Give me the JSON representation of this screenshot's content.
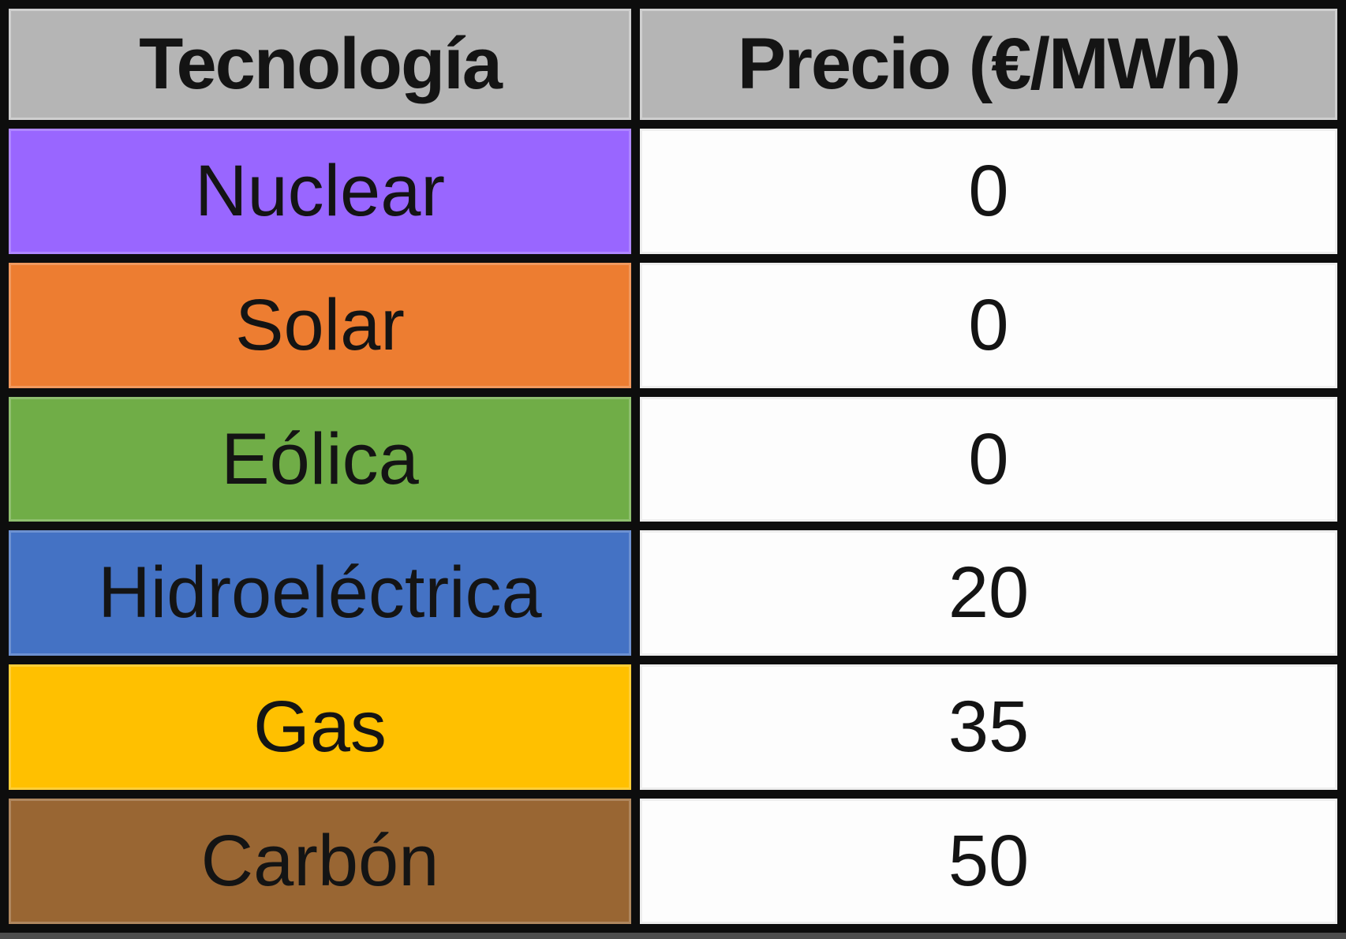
{
  "table": {
    "columns": [
      "Tecnología",
      "Precio (€/MWh)"
    ],
    "rows": [
      {
        "tech": "Nuclear",
        "price": "0",
        "color": "#9966FF"
      },
      {
        "tech": "Solar",
        "price": "0",
        "color": "#ED7D31"
      },
      {
        "tech": "Eólica",
        "price": "0",
        "color": "#70AD47"
      },
      {
        "tech": "Hidroeléctrica",
        "price": "20",
        "color": "#4472C4"
      },
      {
        "tech": "Gas",
        "price": "35",
        "color": "#FFC000"
      },
      {
        "tech": "Carbón",
        "price": "50",
        "color": "#996633"
      }
    ],
    "header_bg": "#B5B5B5",
    "cell_bg": "#FDFDFD",
    "border_color": "#0D0D0D",
    "bottom_strip_color": "#4D4D4D"
  },
  "chart_data": {
    "type": "table",
    "columns": [
      "Tecnología",
      "Precio (€/MWh)"
    ],
    "rows": [
      [
        "Nuclear",
        0
      ],
      [
        "Solar",
        0
      ],
      [
        "Eólica",
        0
      ],
      [
        "Hidroeléctrica",
        20
      ],
      [
        "Gas",
        35
      ],
      [
        "Carbón",
        50
      ]
    ],
    "row_colors": [
      "#9966FF",
      "#ED7D31",
      "#70AD47",
      "#4472C4",
      "#FFC000",
      "#996633"
    ],
    "header_bg": "#B5B5B5",
    "notes": "Two-column table: technology name on colored background, price in €/MWh on white background"
  }
}
